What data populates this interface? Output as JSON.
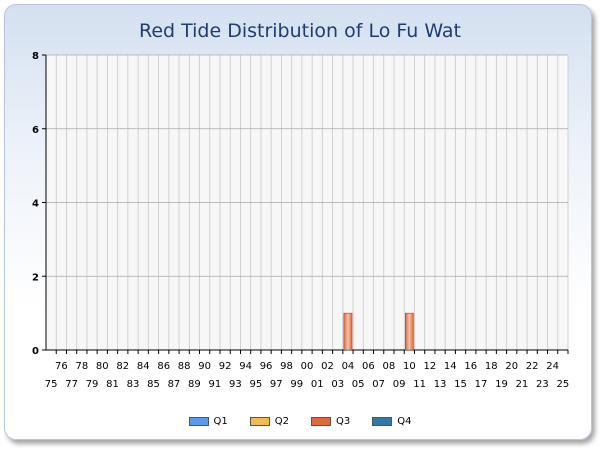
{
  "chart_data": {
    "type": "bar",
    "title": "Red Tide Distribution of Lo Fu Wat",
    "categories": [
      "75",
      "76",
      "77",
      "78",
      "79",
      "80",
      "81",
      "82",
      "83",
      "84",
      "85",
      "86",
      "87",
      "88",
      "89",
      "90",
      "91",
      "92",
      "93",
      "94",
      "95",
      "96",
      "97",
      "98",
      "99",
      "00",
      "01",
      "02",
      "03",
      "04",
      "05",
      "06",
      "07",
      "08",
      "09",
      "10",
      "11",
      "12",
      "13",
      "14",
      "15",
      "16",
      "17",
      "18",
      "19",
      "20",
      "21",
      "22",
      "23",
      "24",
      "25"
    ],
    "ylim": [
      0,
      8
    ],
    "yticks": [
      0,
      2,
      4,
      6,
      8
    ],
    "grid": true,
    "legend_position": "bottom",
    "series": [
      {
        "name": "Q1",
        "color": "#5b9bef",
        "values": [
          0,
          0,
          0,
          0,
          0,
          0,
          0,
          0,
          0,
          0,
          0,
          0,
          0,
          0,
          0,
          0,
          0,
          0,
          0,
          0,
          0,
          0,
          0,
          0,
          0,
          0,
          0,
          0,
          0,
          0,
          0,
          0,
          0,
          0,
          0,
          0,
          0,
          0,
          0,
          0,
          0,
          0,
          0,
          0,
          0,
          0,
          0,
          0,
          0,
          0,
          0
        ]
      },
      {
        "name": "Q2",
        "color": "#f6b94c",
        "values": [
          0,
          0,
          0,
          0,
          0,
          0,
          0,
          0,
          0,
          0,
          0,
          0,
          0,
          0,
          0,
          0,
          0,
          0,
          0,
          0,
          0,
          0,
          0,
          0,
          0,
          0,
          0,
          0,
          0,
          0,
          0,
          0,
          0,
          0,
          0,
          0,
          0,
          0,
          0,
          0,
          0,
          0,
          0,
          0,
          0,
          0,
          0,
          0,
          0,
          0,
          0
        ]
      },
      {
        "name": "Q3",
        "color": "#e0683a",
        "values": [
          0,
          0,
          0,
          0,
          0,
          0,
          0,
          0,
          0,
          0,
          0,
          0,
          0,
          0,
          0,
          0,
          0,
          0,
          0,
          0,
          0,
          0,
          0,
          0,
          0,
          0,
          0,
          0,
          0,
          1,
          0,
          0,
          0,
          0,
          0,
          1,
          0,
          0,
          0,
          0,
          0,
          0,
          0,
          0,
          0,
          0,
          0,
          0,
          0,
          0,
          0
        ]
      },
      {
        "name": "Q4",
        "color": "#2f7aa6",
        "values": [
          0,
          0,
          0,
          0,
          0,
          0,
          0,
          0,
          0,
          0,
          0,
          0,
          0,
          0,
          0,
          0,
          0,
          0,
          0,
          0,
          0,
          0,
          0,
          0,
          0,
          0,
          0,
          0,
          0,
          0,
          0,
          0,
          0,
          0,
          0,
          0,
          0,
          0,
          0,
          0,
          0,
          0,
          0,
          0,
          0,
          0,
          0,
          0,
          0,
          0,
          0
        ]
      }
    ]
  }
}
